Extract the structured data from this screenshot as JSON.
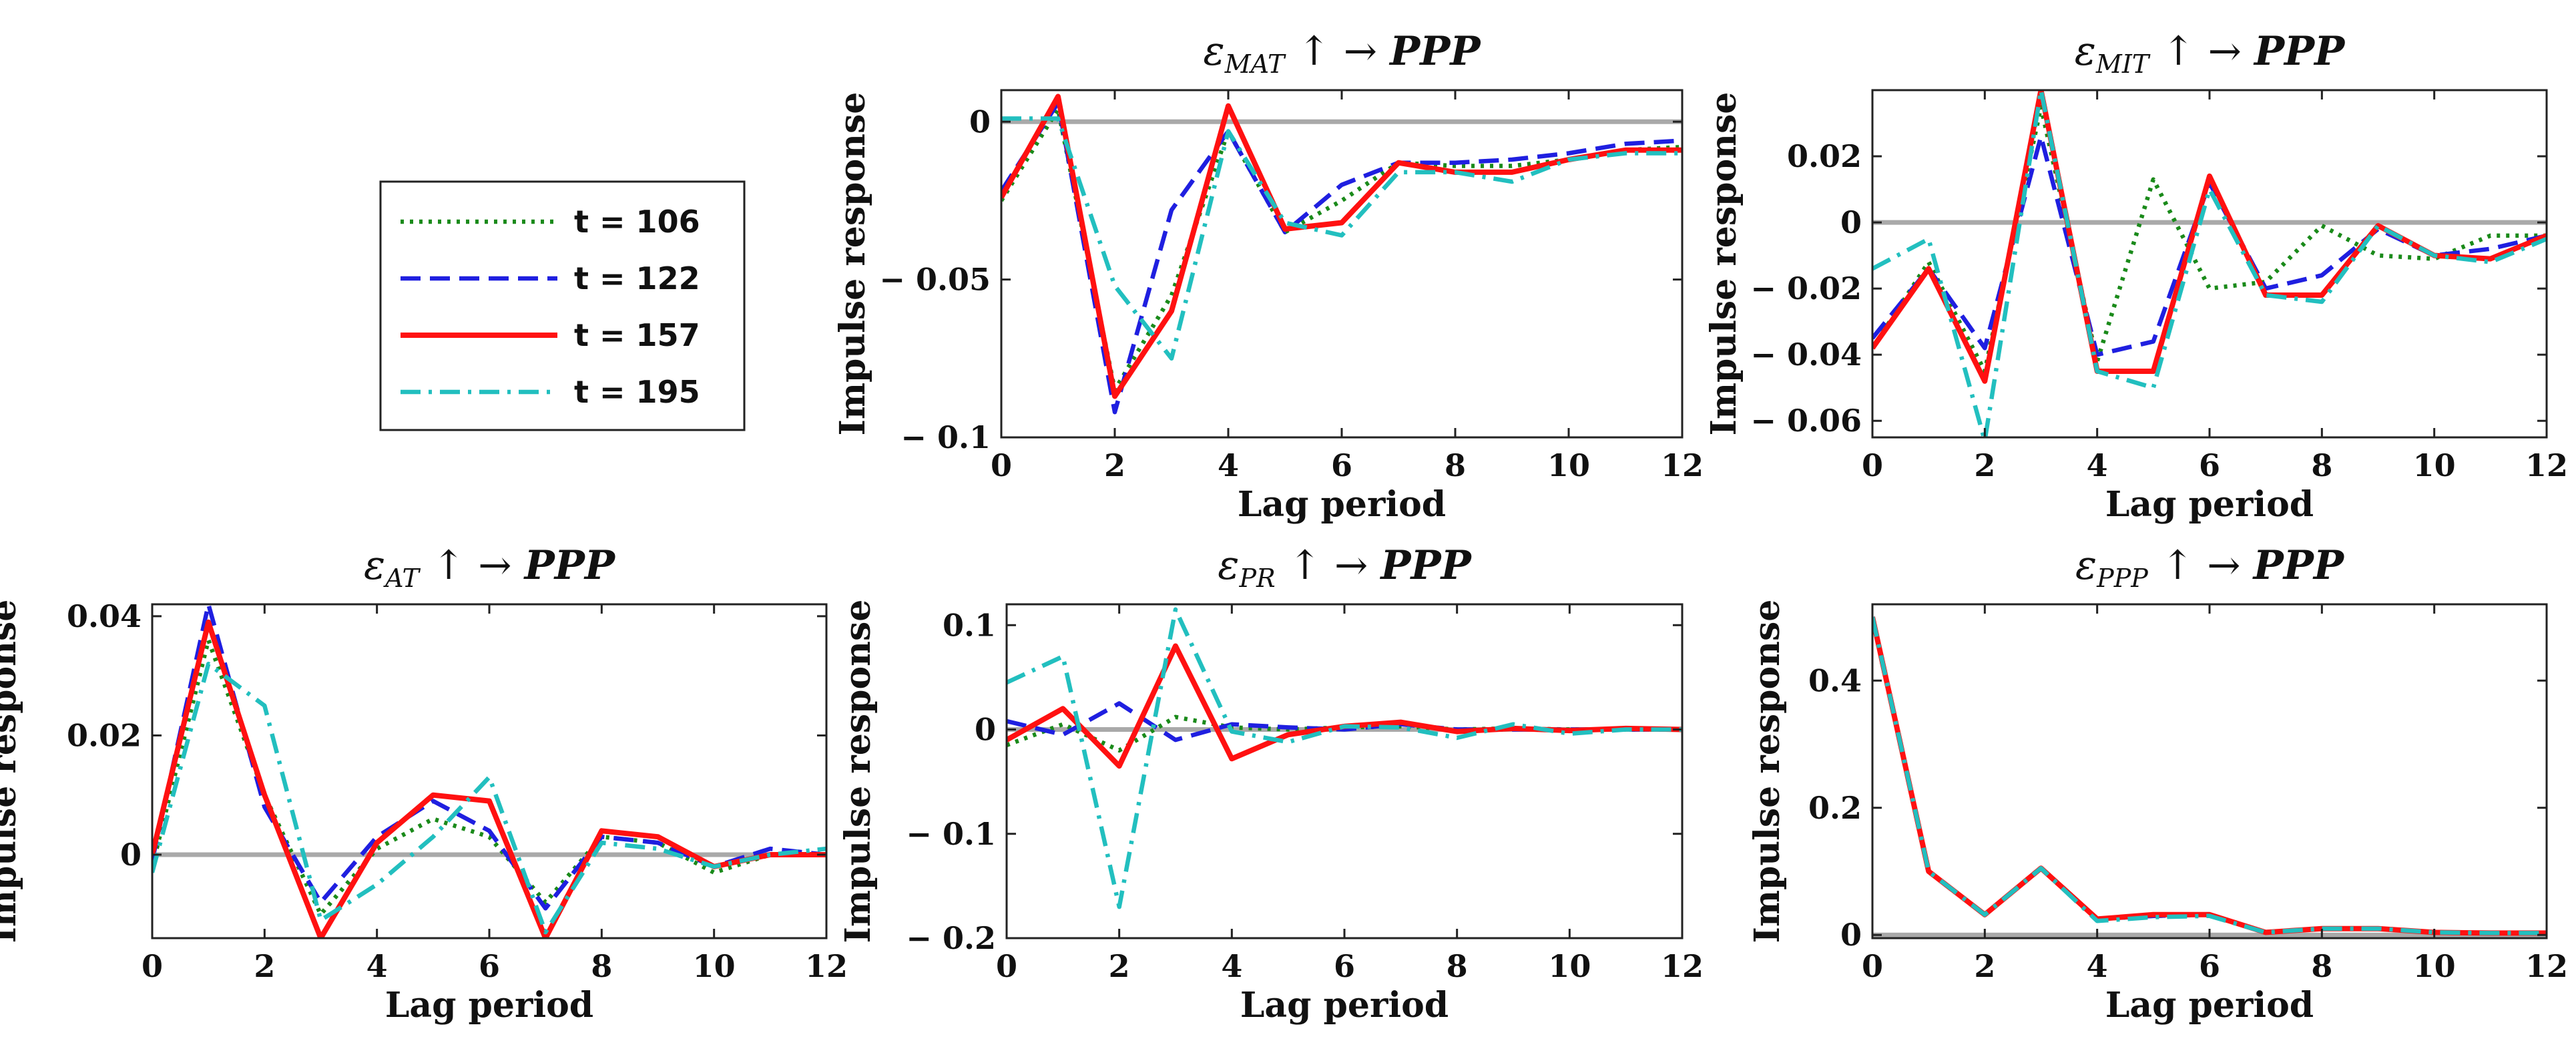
{
  "chart_data": [
    {
      "id": "mat",
      "type": "line",
      "title": {
        "shock": "MAT",
        "target": "PPP"
      },
      "xlabel": "Lag period",
      "ylabel": "Impulse response",
      "xlim": [
        0,
        12
      ],
      "ylim": [
        -0.1,
        0.01
      ],
      "xticks": [
        0,
        2,
        4,
        6,
        8,
        10,
        12
      ],
      "yticks": [
        0,
        -0.05,
        -0.1
      ],
      "ytick_labels": [
        "0",
        "− 0.05",
        "− 0.1"
      ],
      "series": [
        {
          "name": "t = 106",
          "values": [
            -0.025,
            0.004,
            -0.085,
            -0.055,
            -0.003,
            -0.035,
            -0.025,
            -0.013,
            -0.014,
            -0.014,
            -0.012,
            -0.009,
            -0.008
          ]
        },
        {
          "name": "t = 122",
          "values": [
            -0.022,
            0.006,
            -0.092,
            -0.028,
            -0.003,
            -0.035,
            -0.02,
            -0.013,
            -0.013,
            -0.012,
            -0.01,
            -0.007,
            -0.006
          ]
        },
        {
          "name": "t = 157",
          "values": [
            -0.024,
            0.008,
            -0.087,
            -0.06,
            0.005,
            -0.034,
            -0.032,
            -0.013,
            -0.016,
            -0.016,
            -0.012,
            -0.009,
            -0.009
          ]
        },
        {
          "name": "t = 195",
          "values": [
            0.001,
            0.001,
            -0.052,
            -0.075,
            -0.003,
            -0.032,
            -0.036,
            -0.016,
            -0.016,
            -0.019,
            -0.012,
            -0.01,
            -0.01
          ]
        }
      ]
    },
    {
      "id": "mit",
      "type": "line",
      "title": {
        "shock": "MIT",
        "target": "PPP"
      },
      "xlabel": "Lag period",
      "ylabel": "Impulse response",
      "xlim": [
        0,
        12
      ],
      "ylim": [
        -0.065,
        0.04
      ],
      "xticks": [
        0,
        2,
        4,
        6,
        8,
        10,
        12
      ],
      "yticks": [
        0.02,
        0,
        -0.02,
        -0.04,
        -0.06
      ],
      "ytick_labels": [
        "0.02",
        "0",
        "− 0.02",
        "− 0.04",
        "− 0.06"
      ],
      "series": [
        {
          "name": "t = 106",
          "values": [
            -0.038,
            -0.012,
            -0.045,
            0.035,
            -0.042,
            0.013,
            -0.02,
            -0.018,
            -0.001,
            -0.01,
            -0.011,
            -0.004,
            -0.004
          ]
        },
        {
          "name": "t = 122",
          "values": [
            -0.035,
            -0.014,
            -0.038,
            0.026,
            -0.04,
            -0.036,
            0.012,
            -0.02,
            -0.016,
            -0.002,
            -0.01,
            -0.008,
            -0.004
          ]
        },
        {
          "name": "t = 157",
          "values": [
            -0.038,
            -0.014,
            -0.048,
            0.04,
            -0.045,
            -0.045,
            0.014,
            -0.022,
            -0.022,
            -0.001,
            -0.01,
            -0.011,
            -0.004
          ]
        },
        {
          "name": "t = 195",
          "values": [
            -0.014,
            -0.005,
            -0.066,
            0.04,
            -0.045,
            -0.05,
            0.01,
            -0.022,
            -0.024,
            -0.001,
            -0.01,
            -0.012,
            -0.005
          ]
        }
      ]
    },
    {
      "id": "at",
      "type": "line",
      "title": {
        "shock": "AT",
        "target": "PPP"
      },
      "xlabel": "Lag period",
      "ylabel": "Impulse response",
      "xlim": [
        0,
        12
      ],
      "ylim": [
        -0.014,
        0.042
      ],
      "xticks": [
        0,
        2,
        4,
        6,
        8,
        10,
        12
      ],
      "yticks": [
        0.04,
        0.02,
        0
      ],
      "ytick_labels": [
        "0.04",
        "0.02",
        "0"
      ],
      "series": [
        {
          "name": "t = 106",
          "values": [
            -0.002,
            0.036,
            0.01,
            -0.01,
            0.001,
            0.006,
            0.003,
            -0.008,
            0.003,
            0.002,
            -0.003,
            0.0,
            0.0
          ]
        },
        {
          "name": "t = 122",
          "values": [
            -0.001,
            0.042,
            0.008,
            -0.008,
            0.003,
            0.009,
            0.004,
            -0.009,
            0.003,
            0.002,
            -0.002,
            0.001,
            0.0
          ]
        },
        {
          "name": "t = 157",
          "values": [
            0.0,
            0.039,
            0.01,
            -0.014,
            0.002,
            0.01,
            0.009,
            -0.014,
            0.004,
            0.003,
            -0.002,
            0.0,
            0.0
          ]
        },
        {
          "name": "t = 195",
          "values": [
            -0.003,
            0.032,
            0.025,
            -0.011,
            -0.005,
            0.003,
            0.013,
            -0.013,
            0.002,
            0.001,
            -0.002,
            0.0,
            0.001
          ]
        }
      ]
    },
    {
      "id": "pr",
      "type": "line",
      "title": {
        "shock": "PR",
        "target": "PPP"
      },
      "xlabel": "Lag period",
      "ylabel": "Impulse response",
      "xlim": [
        0,
        12
      ],
      "ylim": [
        -0.2,
        0.12
      ],
      "xticks": [
        0,
        2,
        4,
        6,
        8,
        10,
        12
      ],
      "yticks": [
        0.1,
        0,
        -0.1,
        -0.2
      ],
      "ytick_labels": [
        "0.1",
        "0",
        "− 0.1",
        "− 0.2"
      ],
      "series": [
        {
          "name": "t = 106",
          "values": [
            -0.015,
            0.005,
            -0.02,
            0.012,
            0.002,
            0.0,
            0.002,
            0.003,
            0.0,
            0.001,
            0.0,
            0.0,
            0.0
          ]
        },
        {
          "name": "t = 122",
          "values": [
            0.008,
            -0.005,
            0.025,
            -0.01,
            0.005,
            0.002,
            0.0,
            0.005,
            0.0,
            0.0,
            0.0,
            0.0,
            0.0
          ]
        },
        {
          "name": "t = 157",
          "values": [
            -0.01,
            0.02,
            -0.035,
            0.08,
            -0.028,
            -0.005,
            0.003,
            0.007,
            -0.002,
            0.001,
            -0.001,
            0.001,
            0.0
          ]
        },
        {
          "name": "t = 195",
          "values": [
            0.045,
            0.07,
            -0.17,
            0.115,
            -0.002,
            -0.012,
            0.003,
            0.002,
            -0.008,
            0.005,
            -0.004,
            0.0,
            0.0
          ]
        }
      ]
    },
    {
      "id": "ppp",
      "type": "line",
      "title": {
        "shock": "PPP",
        "target": "PPP"
      },
      "xlabel": "Lag period",
      "ylabel": "Impulse response",
      "xlim": [
        0,
        12
      ],
      "ylim": [
        -0.005,
        0.52
      ],
      "xticks": [
        0,
        2,
        4,
        6,
        8,
        10,
        12
      ],
      "yticks": [
        0.4,
        0.2,
        0
      ],
      "ytick_labels": [
        "0.4",
        "0.2",
        "0"
      ],
      "series": [
        {
          "name": "t = 106",
          "values": [
            0.5,
            0.1,
            0.032,
            0.105,
            0.025,
            0.03,
            0.032,
            0.004,
            0.01,
            0.01,
            0.004,
            0.003,
            0.003
          ]
        },
        {
          "name": "t = 122",
          "values": [
            0.5,
            0.1,
            0.032,
            0.105,
            0.025,
            0.03,
            0.032,
            0.004,
            0.01,
            0.01,
            0.004,
            0.003,
            0.003
          ]
        },
        {
          "name": "t = 157",
          "values": [
            0.5,
            0.1,
            0.032,
            0.105,
            0.025,
            0.032,
            0.032,
            0.004,
            0.01,
            0.01,
            0.004,
            0.003,
            0.003
          ]
        },
        {
          "name": "t = 195",
          "values": [
            0.5,
            0.1,
            0.032,
            0.105,
            0.022,
            0.028,
            0.03,
            0.004,
            0.01,
            0.01,
            0.004,
            0.003,
            0.003
          ]
        }
      ]
    }
  ],
  "legend": {
    "entries": [
      {
        "label": "t = 106",
        "color": "#1a8a1a",
        "dash": "dotted"
      },
      {
        "label": "t = 122",
        "color": "#1f1fe0",
        "dash": "dashed"
      },
      {
        "label": "t = 157",
        "color": "#ff1111",
        "dash": "solid"
      },
      {
        "label": "t = 195",
        "color": "#22bfbf",
        "dash": "dashdot"
      }
    ]
  },
  "title_symbols": {
    "epsilon": "ε",
    "arrows": "↑ →"
  }
}
